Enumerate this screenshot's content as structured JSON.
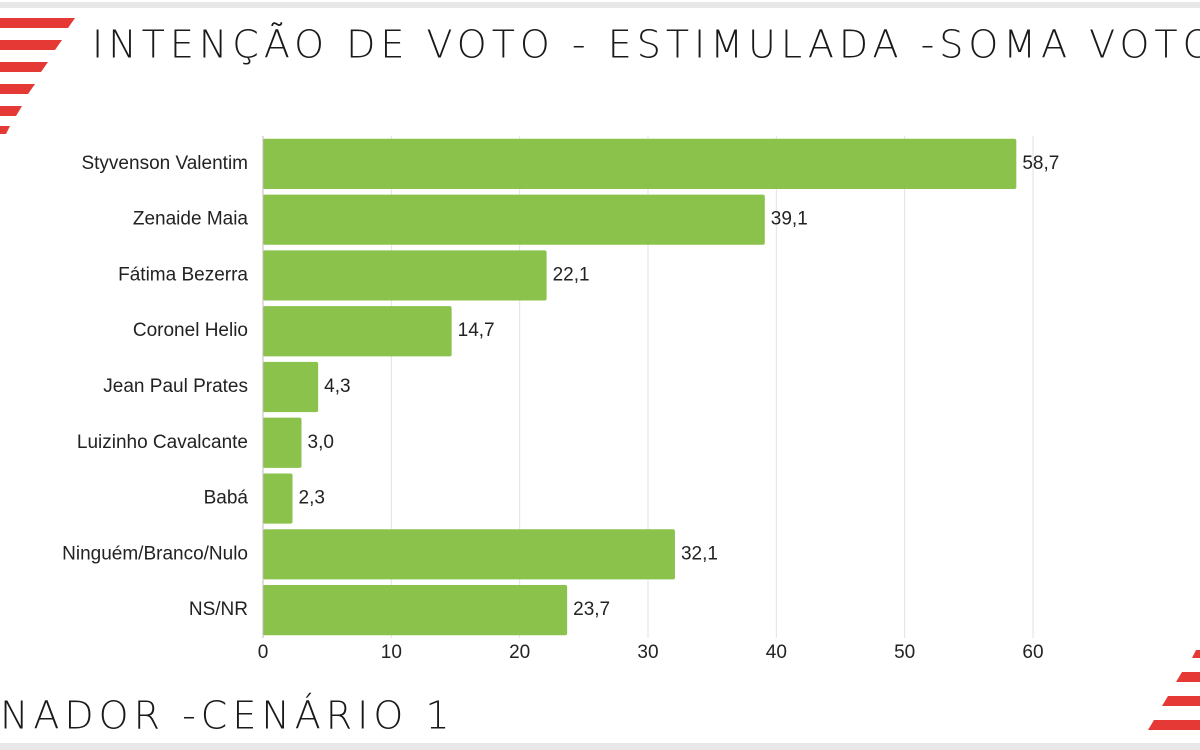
{
  "chart_data": {
    "type": "hbar",
    "title": "INTENÇÃO DE VOTO - ESTIMULADA -SOMA VOTO",
    "subtitle": "NADOR -CENÁRIO 1",
    "categories": [
      "Styvenson Valentim",
      "Zenaide Maia",
      "Fátima Bezerra",
      "Coronel Helio",
      "Jean Paul Prates",
      "Luizinho Cavalcante",
      "Babá",
      "Ninguém/Branco/Nulo",
      "NS/NR"
    ],
    "values": [
      58.7,
      39.1,
      22.1,
      14.7,
      4.3,
      3.0,
      2.3,
      32.1,
      23.7
    ],
    "value_labels": [
      "58,7",
      "39,1",
      "22,1",
      "14,7",
      "4,3",
      "3,0",
      "2,3",
      "32,1",
      "23,7"
    ],
    "color": "#8bc24c",
    "xlim": [
      0,
      60
    ],
    "xticks": [
      0,
      10,
      20,
      30,
      40,
      50,
      60
    ],
    "grid": true
  }
}
